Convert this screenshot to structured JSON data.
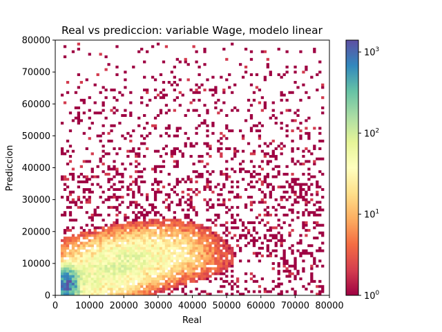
{
  "chart_data": {
    "type": "heatmap",
    "title": "Real vs prediccion: variable Wage, modelo linear",
    "xlabel": "Real",
    "ylabel": "Prediccion",
    "xlim": [
      0,
      80000
    ],
    "ylim": [
      0,
      80000
    ],
    "x_ticks": [
      "0",
      "10000",
      "20000",
      "30000",
      "40000",
      "50000",
      "60000",
      "70000",
      "80000"
    ],
    "y_ticks": [
      "0",
      "10000",
      "20000",
      "30000",
      "40000",
      "50000",
      "60000",
      "70000",
      "80000"
    ],
    "x_tick_values": [
      0,
      10000,
      20000,
      30000,
      40000,
      50000,
      60000,
      70000,
      80000
    ],
    "y_tick_values": [
      0,
      10000,
      20000,
      30000,
      40000,
      50000,
      60000,
      70000,
      80000
    ],
    "bins": 100,
    "colormap": "Spectral",
    "color_scale": "log",
    "color_range": [
      1,
      1400
    ],
    "colorbar_ticks": [
      {
        "value": 1,
        "base": "10",
        "exp": "0"
      },
      {
        "value": 10,
        "base": "10",
        "exp": "1"
      },
      {
        "value": 100,
        "base": "10",
        "exp": "2"
      },
      {
        "value": 1000,
        "base": "10",
        "exp": "3"
      }
    ],
    "notes": "2D histogram (log color). Dense low-prediction cluster near Real 2000-5000, Prediccion 0-8000 with counts up to ~1000; sparse bins elsewhere."
  }
}
